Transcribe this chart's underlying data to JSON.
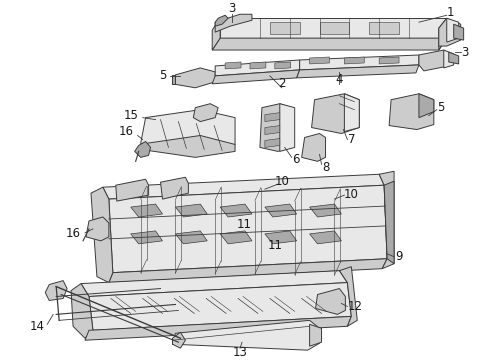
{
  "bg_color": "#ffffff",
  "lc": "#3a3a3a",
  "tc": "#1a1a1a",
  "fc_light": "#e8e8e8",
  "fc_mid": "#cccccc",
  "fc_dark": "#aaaaaa",
  "lw": 0.7,
  "fs": 8.5
}
